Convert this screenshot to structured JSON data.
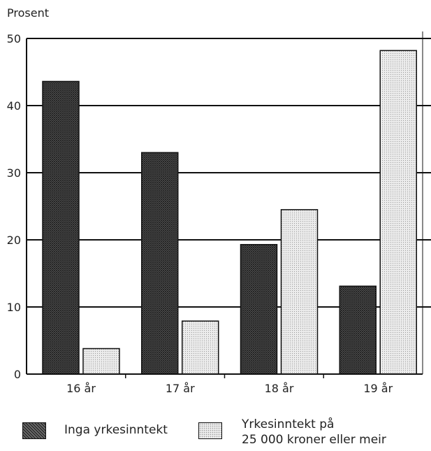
{
  "chart_data": {
    "type": "bar",
    "ylabel": "Prosent",
    "xlabel": "",
    "ylim": [
      0,
      50
    ],
    "yticks": [
      0,
      10,
      20,
      30,
      40,
      50
    ],
    "categories": [
      "16 år",
      "17 år",
      "18 år",
      "19 år"
    ],
    "series": [
      {
        "name": "Inga yrkesinntekt",
        "values": [
          43.6,
          33.0,
          19.3,
          13.1
        ],
        "color": "#555555",
        "pattern": "dense-crosshatch"
      },
      {
        "name": "Yrkesinntekt på\n25 000 kroner eller meir",
        "values": [
          3.8,
          7.9,
          24.5,
          48.2
        ],
        "color": "#e6e6e6",
        "pattern": "fine-dots"
      }
    ],
    "grid": true,
    "legend_position": "bottom"
  }
}
